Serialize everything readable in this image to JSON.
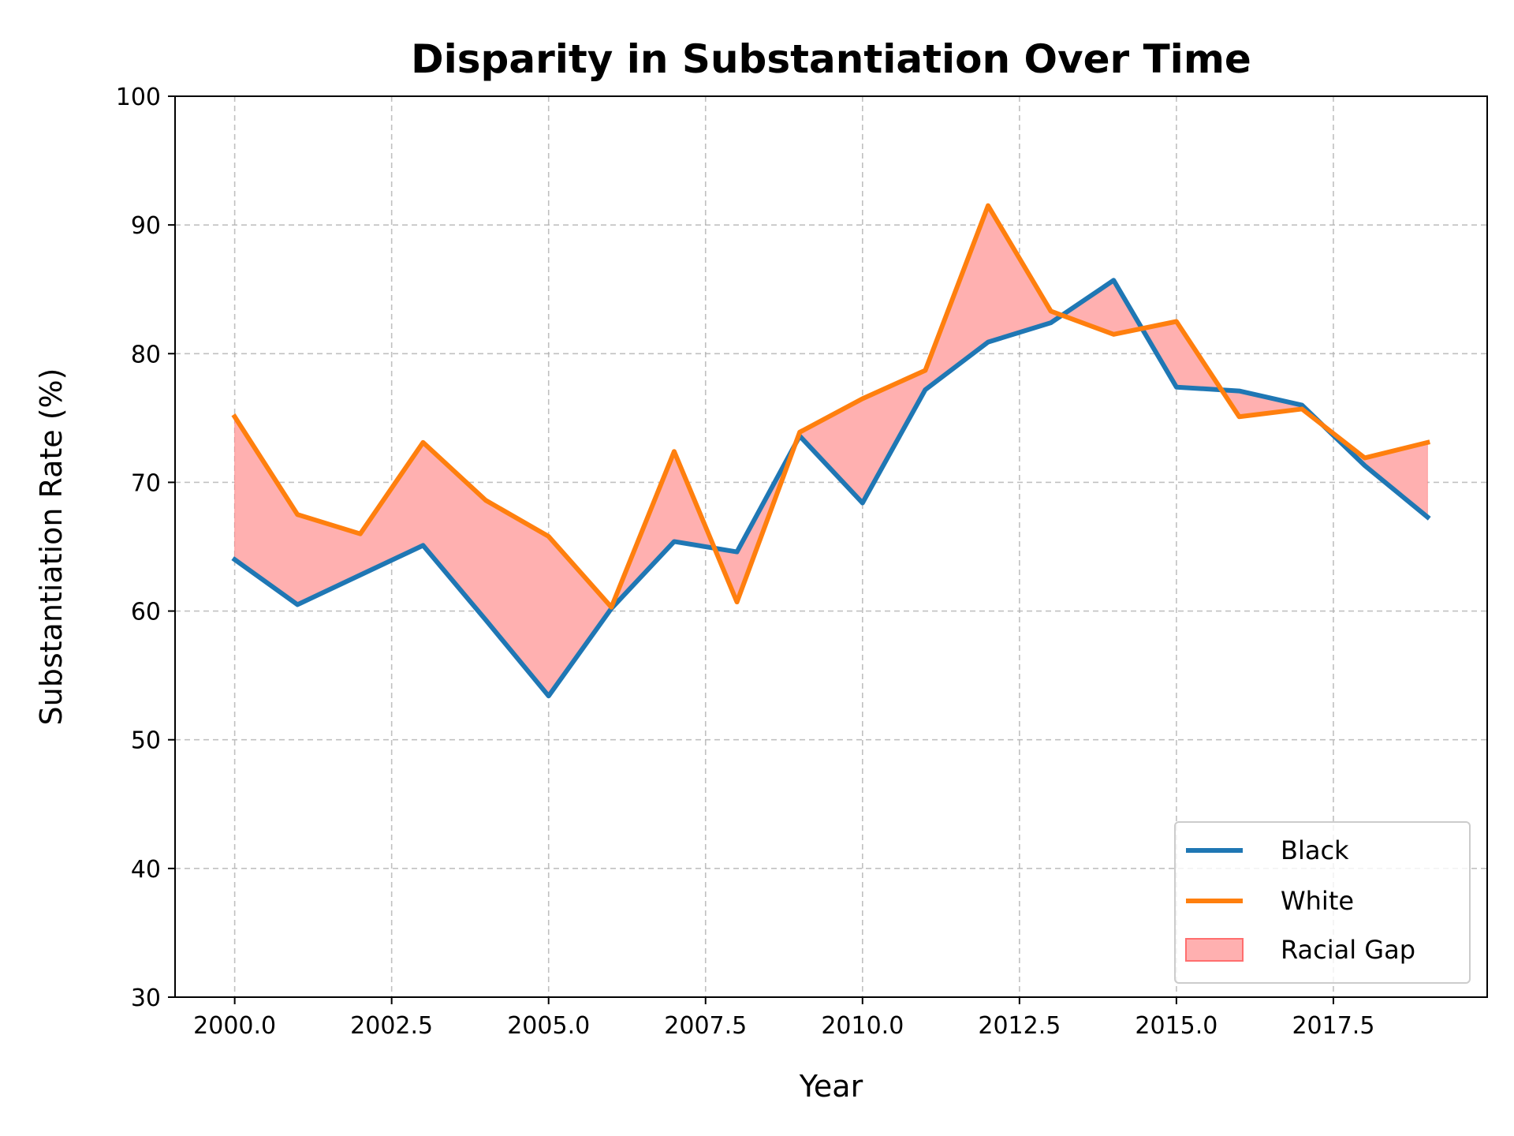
{
  "chart_data": {
    "type": "line",
    "title": "Disparity in Substantiation Over Time",
    "xlabel": "Year",
    "ylabel": "Substantiation Rate (%)",
    "x": [
      2000,
      2001,
      2002,
      2003,
      2004,
      2005,
      2006,
      2007,
      2008,
      2009,
      2010,
      2011,
      2012,
      2013,
      2014,
      2015,
      2016,
      2017,
      2018,
      2019
    ],
    "xlim": [
      1999.05,
      2019.95
    ],
    "ylim": [
      30,
      100
    ],
    "xticks": [
      2000.0,
      2002.5,
      2005.0,
      2007.5,
      2010.0,
      2012.5,
      2015.0,
      2017.5
    ],
    "xtick_labels": [
      "2000.0",
      "2002.5",
      "2005.0",
      "2007.5",
      "2010.0",
      "2012.5",
      "2015.0",
      "2017.5"
    ],
    "yticks": [
      30,
      40,
      50,
      60,
      70,
      80,
      90,
      100
    ],
    "ytick_labels": [
      "30",
      "40",
      "50",
      "60",
      "70",
      "80",
      "90",
      "100"
    ],
    "grid": true,
    "legend_position": "lower-right",
    "series": [
      {
        "name": "Black",
        "color": "#1f77b4",
        "values": [
          64.0,
          60.5,
          62.8,
          65.1,
          59.3,
          53.4,
          60.2,
          65.4,
          64.6,
          73.6,
          68.4,
          77.2,
          80.9,
          82.4,
          85.7,
          77.4,
          77.1,
          76.0,
          71.3,
          67.3
        ]
      },
      {
        "name": "White",
        "color": "#ff7f0e",
        "values": [
          75.1,
          67.5,
          66.0,
          73.1,
          68.6,
          65.8,
          60.3,
          72.4,
          60.7,
          73.9,
          76.5,
          78.7,
          91.5,
          83.3,
          81.5,
          82.5,
          75.1,
          75.7,
          71.9,
          73.1
        ]
      }
    ],
    "fill": {
      "name": "Racial Gap",
      "color": "#ffb0b0",
      "edge_color": "#ff6e6e"
    }
  }
}
